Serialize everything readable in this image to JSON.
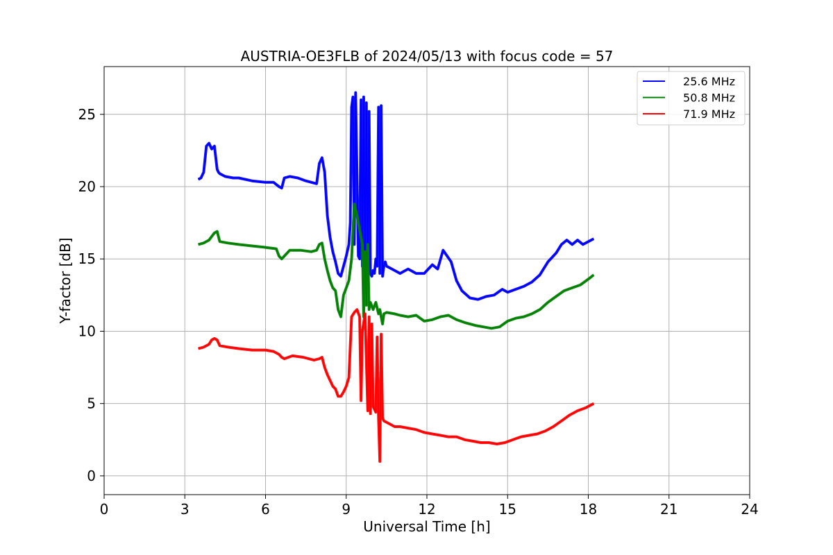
{
  "chart_data": {
    "type": "line",
    "title": "AUSTRIA-OE3FLB of 2024/05/13 with focus code = 57",
    "xlabel": "Universal Time [h]",
    "ylabel": "Y-factor [dB]",
    "xlim": [
      0,
      24
    ],
    "ylim": [
      -1.3,
      28.3
    ],
    "xticks": [
      0,
      3,
      6,
      9,
      12,
      15,
      18,
      21,
      24
    ],
    "yticks": [
      0,
      5,
      10,
      15,
      20,
      25
    ],
    "grid": true,
    "legend_position": "top-right",
    "series": [
      {
        "name": "25.6 MHz",
        "color": "#0000ff",
        "x": [
          3.5,
          3.6,
          3.7,
          3.8,
          3.9,
          4.0,
          4.1,
          4.2,
          4.25,
          4.3,
          4.5,
          4.8,
          5.0,
          5.5,
          6.0,
          6.3,
          6.5,
          6.6,
          6.7,
          6.9,
          7.2,
          7.5,
          7.9,
          8.0,
          8.1,
          8.2,
          8.3,
          8.4,
          8.5,
          8.6,
          8.7,
          8.8,
          8.9,
          9.0,
          9.1,
          9.15,
          9.2,
          9.25,
          9.3,
          9.35,
          9.45,
          9.5,
          9.55,
          9.6,
          9.65,
          9.7,
          9.75,
          9.8,
          9.85,
          9.9,
          9.95,
          10.0,
          10.05,
          10.1,
          10.15,
          10.2,
          10.25,
          10.3,
          10.35,
          10.4,
          10.45,
          10.5,
          10.8,
          11.0,
          11.3,
          11.6,
          11.9,
          12.2,
          12.4,
          12.6,
          12.9,
          13.1,
          13.3,
          13.6,
          13.9,
          14.2,
          14.5,
          14.8,
          15.0,
          15.3,
          15.6,
          15.9,
          16.2,
          16.5,
          16.8,
          17.0,
          17.2,
          17.4,
          17.6,
          17.8,
          18.0,
          18.2
        ],
        "values": [
          20.5,
          20.6,
          21.0,
          22.8,
          23.0,
          22.6,
          22.8,
          21.2,
          21.0,
          20.9,
          20.7,
          20.6,
          20.6,
          20.4,
          20.3,
          20.3,
          20.0,
          19.9,
          20.6,
          20.7,
          20.6,
          20.4,
          20.2,
          21.6,
          22.0,
          21.0,
          18.0,
          16.5,
          15.5,
          14.8,
          14.0,
          13.8,
          14.5,
          15.2,
          16.0,
          17.5,
          25.5,
          26.2,
          16.0,
          26.5,
          15.2,
          15.0,
          26.0,
          14.5,
          26.2,
          14.2,
          25.8,
          14.0,
          25.2,
          14.0,
          13.8,
          14.2,
          14.0,
          15.0,
          14.5,
          25.5,
          14.0,
          25.6,
          13.8,
          14.5,
          14.8,
          14.5,
          14.2,
          14.0,
          14.3,
          14.0,
          14.0,
          14.6,
          14.3,
          15.6,
          14.8,
          13.5,
          12.8,
          12.3,
          12.2,
          12.4,
          12.5,
          12.9,
          12.7,
          12.9,
          13.1,
          13.4,
          13.9,
          14.8,
          15.4,
          16.0,
          16.3,
          16.0,
          16.3,
          16.0,
          16.2,
          16.4
        ]
      },
      {
        "name": "50.8 MHz",
        "color": "#008000",
        "x": [
          3.5,
          3.7,
          3.9,
          4.1,
          4.2,
          4.3,
          4.6,
          5.0,
          5.5,
          6.0,
          6.4,
          6.5,
          6.6,
          6.7,
          6.9,
          7.3,
          7.7,
          7.9,
          8.0,
          8.1,
          8.2,
          8.3,
          8.4,
          8.5,
          8.6,
          8.7,
          8.8,
          8.9,
          9.0,
          9.1,
          9.2,
          9.3,
          9.4,
          9.5,
          9.6,
          9.65,
          9.7,
          9.75,
          9.8,
          9.85,
          9.9,
          10.0,
          10.1,
          10.2,
          10.25,
          10.3,
          10.35,
          10.4,
          10.5,
          10.8,
          11.0,
          11.3,
          11.6,
          11.9,
          12.2,
          12.5,
          12.8,
          13.1,
          13.4,
          13.8,
          14.1,
          14.4,
          14.7,
          15.0,
          15.3,
          15.6,
          15.9,
          16.2,
          16.5,
          16.8,
          17.1,
          17.4,
          17.7,
          18.0,
          18.2
        ],
        "values": [
          16.0,
          16.1,
          16.3,
          16.8,
          16.9,
          16.2,
          16.1,
          16.0,
          15.9,
          15.8,
          15.7,
          15.2,
          15.0,
          15.2,
          15.6,
          15.6,
          15.5,
          15.6,
          16.0,
          16.1,
          15.0,
          14.2,
          13.5,
          13.0,
          12.8,
          11.5,
          11.0,
          12.5,
          13.0,
          13.5,
          15.0,
          18.8,
          18.0,
          17.0,
          16.0,
          11.0,
          15.5,
          11.8,
          16.0,
          11.5,
          12.0,
          11.5,
          12.0,
          11.2,
          11.5,
          11.0,
          10.5,
          11.2,
          11.3,
          11.2,
          11.1,
          11.0,
          11.1,
          10.7,
          10.8,
          11.0,
          11.1,
          10.8,
          10.6,
          10.4,
          10.3,
          10.2,
          10.3,
          10.7,
          10.9,
          11.0,
          11.2,
          11.5,
          12.0,
          12.4,
          12.8,
          13.0,
          13.2,
          13.6,
          13.9
        ]
      },
      {
        "name": "71.9 MHz",
        "color": "#ff0000",
        "x": [
          3.5,
          3.7,
          3.9,
          4.0,
          4.1,
          4.2,
          4.3,
          4.6,
          5.0,
          5.5,
          6.0,
          6.3,
          6.5,
          6.6,
          6.7,
          7.0,
          7.4,
          7.8,
          8.0,
          8.1,
          8.2,
          8.3,
          8.4,
          8.5,
          8.6,
          8.7,
          8.8,
          8.9,
          9.0,
          9.1,
          9.2,
          9.3,
          9.4,
          9.5,
          9.55,
          9.6,
          9.7,
          9.8,
          9.85,
          9.9,
          9.95,
          10.0,
          10.1,
          10.15,
          10.2,
          10.25,
          10.3,
          10.35,
          10.4,
          10.5,
          10.8,
          11.0,
          11.3,
          11.6,
          11.9,
          12.2,
          12.5,
          12.8,
          13.1,
          13.4,
          13.7,
          14.0,
          14.3,
          14.6,
          14.9,
          15.2,
          15.5,
          15.8,
          16.1,
          16.4,
          16.7,
          17.0,
          17.3,
          17.6,
          17.9,
          18.2
        ],
        "values": [
          8.8,
          8.9,
          9.1,
          9.4,
          9.5,
          9.4,
          9.0,
          8.9,
          8.8,
          8.7,
          8.7,
          8.6,
          8.4,
          8.2,
          8.1,
          8.3,
          8.2,
          8.0,
          8.1,
          8.2,
          7.5,
          7.0,
          6.6,
          6.2,
          6.0,
          5.5,
          5.5,
          5.8,
          6.2,
          6.8,
          11.0,
          11.3,
          11.5,
          11.0,
          5.2,
          10.0,
          11.2,
          4.5,
          11.0,
          4.3,
          10.5,
          4.8,
          4.4,
          9.6,
          4.0,
          1.0,
          9.8,
          4.0,
          3.8,
          3.7,
          3.4,
          3.4,
          3.3,
          3.2,
          3.0,
          2.9,
          2.8,
          2.7,
          2.7,
          2.5,
          2.4,
          2.3,
          2.3,
          2.2,
          2.3,
          2.5,
          2.7,
          2.8,
          2.9,
          3.1,
          3.4,
          3.8,
          4.2,
          4.5,
          4.7,
          5.0
        ]
      }
    ]
  }
}
